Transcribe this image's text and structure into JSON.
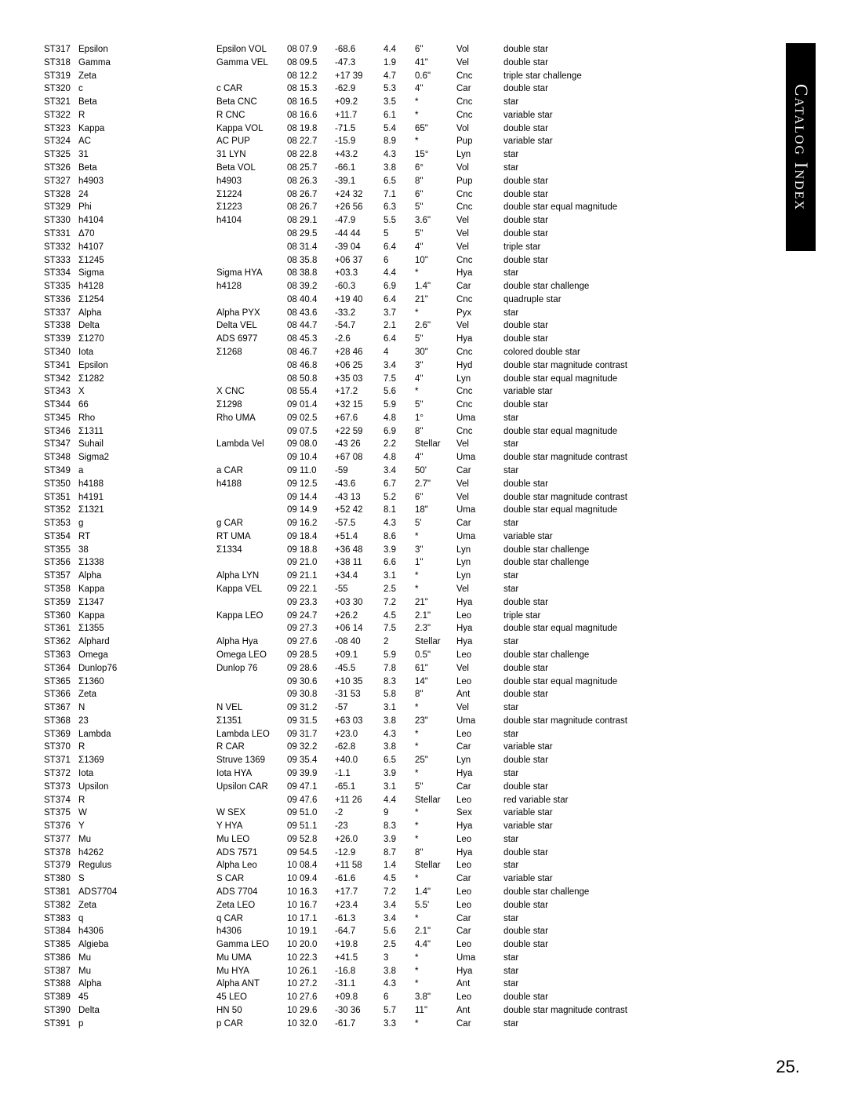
{
  "sidebar_label": "Catalog Index",
  "page_number": "25.",
  "columns": [
    "id",
    "name",
    "designation",
    "ra",
    "dec",
    "mag",
    "sep",
    "con",
    "type"
  ],
  "rows": [
    [
      "ST317",
      "Epsilon",
      "Epsilon VOL",
      "08 07.9",
      "-68.6",
      "4.4",
      "6\"",
      "Vol",
      "double star"
    ],
    [
      "ST318",
      "Gamma",
      "Gamma VEL",
      "08 09.5",
      "-47.3",
      "1.9",
      "41\"",
      "Vel",
      "double star"
    ],
    [
      "ST319",
      "Zeta",
      "",
      "08 12.2",
      "+17 39",
      "4.7",
      "0.6\"",
      "Cnc",
      "triple star challenge"
    ],
    [
      "ST320",
      "c",
      "c CAR",
      "08 15.3",
      "-62.9",
      "5.3",
      "4\"",
      "Car",
      "double star"
    ],
    [
      "ST321",
      "Beta",
      "Beta CNC",
      "08 16.5",
      "+09.2",
      "3.5",
      "*",
      "Cnc",
      "star"
    ],
    [
      "ST322",
      "R",
      "R CNC",
      "08 16.6",
      "+11.7",
      "6.1",
      "*",
      "Cnc",
      "variable star"
    ],
    [
      "ST323",
      "Kappa",
      "Kappa VOL",
      "08 19.8",
      "-71.5",
      "5.4",
      "65\"",
      "Vol",
      "double star"
    ],
    [
      "ST324",
      "AC",
      "AC PUP",
      "08 22.7",
      "-15.9",
      "8.9",
      "*",
      "Pup",
      "variable star"
    ],
    [
      "ST325",
      "31",
      "31 LYN",
      "08 22.8",
      "+43.2",
      "4.3",
      "15°",
      "Lyn",
      "star"
    ],
    [
      "ST326",
      "Beta",
      "Beta VOL",
      "08 25.7",
      "-66.1",
      "3.8",
      "6°",
      "Vol",
      "star"
    ],
    [
      "ST327",
      "h4903",
      "h4903",
      "08 26.3",
      "-39.1",
      "6.5",
      "8\"",
      "Pup",
      "double star"
    ],
    [
      "ST328",
      "24",
      "Σ1224",
      "08 26.7",
      "+24 32",
      "7.1",
      "6\"",
      "Cnc",
      "double star"
    ],
    [
      "ST329",
      "Phi",
      "Σ1223",
      "08 26.7",
      "+26 56",
      "6.3",
      "5\"",
      "Cnc",
      "double star equal magnitude"
    ],
    [
      "ST330",
      "h4104",
      "h4104",
      "08 29.1",
      "-47.9",
      "5.5",
      "3.6\"",
      "Vel",
      "double star"
    ],
    [
      "ST331",
      "Δ70",
      "",
      "08 29.5",
      "-44 44",
      "5",
      "5\"",
      "Vel",
      "double star"
    ],
    [
      "ST332",
      "h4107",
      "",
      "08 31.4",
      "-39 04",
      "6.4",
      "4\"",
      "Vel",
      "triple star"
    ],
    [
      "ST333",
      "Σ1245",
      "",
      "08 35.8",
      "+06 37",
      "6",
      "10\"",
      "Cnc",
      "double star"
    ],
    [
      "ST334",
      "Sigma",
      "Sigma HYA",
      "08 38.8",
      "+03.3",
      "4.4",
      "*",
      "Hya",
      "star"
    ],
    [
      "ST335",
      "h4128",
      "h4128",
      "08 39.2",
      "-60.3",
      "6.9",
      "1.4\"",
      "Car",
      "double star challenge"
    ],
    [
      "ST336",
      "Σ1254",
      "",
      "08 40.4",
      "+19 40",
      "6.4",
      "21\"",
      "Cnc",
      "quadruple star"
    ],
    [
      "ST337",
      "Alpha",
      "Alpha PYX",
      "08 43.6",
      "-33.2",
      "3.7",
      "*",
      "Pyx",
      "star"
    ],
    [
      "ST338",
      "Delta",
      "Delta VEL",
      "08 44.7",
      "-54.7",
      "2.1",
      "2.6\"",
      "Vel",
      "double star"
    ],
    [
      "ST339",
      "Σ1270",
      "ADS 6977",
      "08 45.3",
      "-2.6",
      "6.4",
      "5\"",
      "Hya",
      "double star"
    ],
    [
      "ST340",
      "Iota",
      "Σ1268",
      "08 46.7",
      "+28 46",
      "4",
      "30\"",
      "Cnc",
      "colored double star"
    ],
    [
      "ST341",
      "Epsilon",
      "",
      "08 46.8",
      "+06 25",
      "3.4",
      "3\"",
      "Hyd",
      "double star magnitude contrast"
    ],
    [
      "ST342",
      "Σ1282",
      "",
      "08 50.8",
      "+35 03",
      "7.5",
      "4\"",
      "Lyn",
      "double star equal magnitude"
    ],
    [
      "ST343",
      "X",
      "X CNC",
      "08 55.4",
      "+17.2",
      "5.6",
      "*",
      "Cnc",
      "variable star"
    ],
    [
      "ST344",
      "66",
      "Σ1298",
      "09 01.4",
      "+32 15",
      "5.9",
      "5\"",
      "Cnc",
      "double star"
    ],
    [
      "ST345",
      "Rho",
      "Rho UMA",
      "09 02.5",
      "+67.6",
      "4.8",
      "1°",
      "Uma",
      "star"
    ],
    [
      "ST346",
      "Σ1311",
      "",
      "09 07.5",
      "+22 59",
      "6.9",
      "8\"",
      "Cnc",
      "double star equal magnitude"
    ],
    [
      "ST347",
      "Suhail",
      "Lambda Vel",
      "09 08.0",
      "-43 26",
      "2.2",
      "Stellar",
      "Vel",
      "star"
    ],
    [
      "ST348",
      "Sigma2",
      "",
      "09 10.4",
      "+67 08",
      "4.8",
      "4\"",
      "Uma",
      "double star magnitude contrast"
    ],
    [
      "ST349",
      "a",
      "a CAR",
      "09 11.0",
      "-59",
      "3.4",
      "50'",
      "Car",
      "star"
    ],
    [
      "ST350",
      "h4188",
      "h4188",
      "09 12.5",
      "-43.6",
      "6.7",
      "2.7\"",
      "Vel",
      "double star"
    ],
    [
      "ST351",
      "h4191",
      "",
      "09 14.4",
      "-43 13",
      "5.2",
      "6\"",
      "Vel",
      "double star magnitude contrast"
    ],
    [
      "ST352",
      "Σ1321",
      "",
      "09 14.9",
      "+52 42",
      "8.1",
      "18\"",
      "Uma",
      "double star equal magnitude"
    ],
    [
      "ST353",
      "g",
      "g CAR",
      "09 16.2",
      "-57.5",
      "4.3",
      "5'",
      "Car",
      "star"
    ],
    [
      "ST354",
      "RT",
      "RT UMA",
      "09 18.4",
      "+51.4",
      "8.6",
      "*",
      "Uma",
      "variable star"
    ],
    [
      "ST355",
      "38",
      "Σ1334",
      "09 18.8",
      "+36 48",
      "3.9",
      "3\"",
      "Lyn",
      "double star challenge"
    ],
    [
      "ST356",
      "Σ1338",
      "",
      "09 21.0",
      "+38 11",
      "6.6",
      "1\"",
      "Lyn",
      "double star challenge"
    ],
    [
      "ST357",
      "Alpha",
      "Alpha LYN",
      "09 21.1",
      "+34.4",
      "3.1",
      "*",
      "Lyn",
      "star"
    ],
    [
      "ST358",
      "Kappa",
      "Kappa VEL",
      "09 22.1",
      "-55",
      "2.5",
      "*",
      "Vel",
      "star"
    ],
    [
      "ST359",
      "Σ1347",
      "",
      "09 23.3",
      "+03 30",
      "7.2",
      "21\"",
      "Hya",
      "double star"
    ],
    [
      "ST360",
      "Kappa",
      "Kappa LEO",
      "09 24.7",
      "+26.2",
      "4.5",
      "2.1\"",
      "Leo",
      "triple star"
    ],
    [
      "ST361",
      "Σ1355",
      "",
      "09 27.3",
      "+06 14",
      "7.5",
      "2.3\"",
      "Hya",
      "double star equal magnitude"
    ],
    [
      "ST362",
      "Alphard",
      "Alpha Hya",
      "09 27.6",
      "-08 40",
      "2",
      "Stellar",
      "Hya",
      "star"
    ],
    [
      "ST363",
      "Omega",
      "Omega LEO",
      "09 28.5",
      "+09.1",
      "5.9",
      "0.5\"",
      "Leo",
      "double star challenge"
    ],
    [
      "ST364",
      "Dunlop76",
      "Dunlop 76",
      "09 28.6",
      "-45.5",
      "7.8",
      "61\"",
      "Vel",
      "double star"
    ],
    [
      "ST365",
      "Σ1360",
      "",
      "09 30.6",
      "+10 35",
      "8.3",
      "14\"",
      "Leo",
      "double star equal magnitude"
    ],
    [
      "ST366",
      "Zeta",
      "",
      "09 30.8",
      "-31 53",
      "5.8",
      "8\"",
      "Ant",
      "double star"
    ],
    [
      "ST367",
      "N",
      "N VEL",
      "09 31.2",
      "-57",
      "3.1",
      "*",
      "Vel",
      "star"
    ],
    [
      "ST368",
      "23",
      "Σ1351",
      "09 31.5",
      "+63 03",
      "3.8",
      "23\"",
      "Uma",
      "double star magnitude contrast"
    ],
    [
      "ST369",
      "Lambda",
      "Lambda LEO",
      "09 31.7",
      "+23.0",
      "4.3",
      "*",
      "Leo",
      "star"
    ],
    [
      "ST370",
      "R",
      "R CAR",
      "09 32.2",
      "-62.8",
      "3.8",
      "*",
      "Car",
      "variable star"
    ],
    [
      "ST371",
      "Σ1369",
      "Struve 1369",
      "09 35.4",
      "+40.0",
      "6.5",
      "25\"",
      "Lyn",
      "double star"
    ],
    [
      "ST372",
      "Iota",
      "Iota HYA",
      "09 39.9",
      "-1.1",
      "3.9",
      "*",
      "Hya",
      "star"
    ],
    [
      "ST373",
      "Upsilon",
      "Upsilon CAR",
      "09 47.1",
      "-65.1",
      "3.1",
      "5\"",
      "Car",
      "double star"
    ],
    [
      "ST374",
      "R",
      "",
      "09 47.6",
      "+11 26",
      "4.4",
      "Stellar",
      "Leo",
      "red variable star"
    ],
    [
      "ST375",
      "W",
      "W SEX",
      "09 51.0",
      "-2",
      "9",
      "*",
      "Sex",
      "variable star"
    ],
    [
      "ST376",
      "Y",
      "Y HYA",
      "09 51.1",
      "-23",
      "8.3",
      "*",
      "Hya",
      "variable star"
    ],
    [
      "ST377",
      "Mu",
      "Mu LEO",
      "09 52.8",
      "+26.0",
      "3.9",
      "*",
      "Leo",
      "star"
    ],
    [
      "ST378",
      "h4262",
      "ADS 7571",
      "09 54.5",
      "-12.9",
      "8.7",
      "8\"",
      "Hya",
      "double star"
    ],
    [
      "ST379",
      "Regulus",
      "Alpha Leo",
      "10 08.4",
      "+11 58",
      "1.4",
      "Stellar",
      "Leo",
      "star"
    ],
    [
      "ST380",
      "S",
      "S CAR",
      "10 09.4",
      "-61.6",
      "4.5",
      "*",
      "Car",
      "variable star"
    ],
    [
      "ST381",
      "ADS7704",
      "ADS 7704",
      "10 16.3",
      "+17.7",
      "7.2",
      "1.4\"",
      "Leo",
      "double star challenge"
    ],
    [
      "ST382",
      "Zeta",
      "Zeta LEO",
      "10 16.7",
      "+23.4",
      "3.4",
      "5.5'",
      "Leo",
      "double star"
    ],
    [
      "ST383",
      "q",
      "q CAR",
      "10 17.1",
      "-61.3",
      "3.4",
      "*",
      "Car",
      "star"
    ],
    [
      "ST384",
      "h4306",
      "h4306",
      "10 19.1",
      "-64.7",
      "5.6",
      "2.1\"",
      "Car",
      "double star"
    ],
    [
      "ST385",
      "Algieba",
      "Gamma LEO",
      "10 20.0",
      "+19.8",
      "2.5",
      "4.4\"",
      "Leo",
      "double star"
    ],
    [
      "ST386",
      "Mu",
      "Mu UMA",
      "10 22.3",
      "+41.5",
      "3",
      "*",
      "Uma",
      "star"
    ],
    [
      "ST387",
      "Mu",
      "Mu HYA",
      "10 26.1",
      "-16.8",
      "3.8",
      "*",
      "Hya",
      "star"
    ],
    [
      "ST388",
      "Alpha",
      "Alpha ANT",
      "10 27.2",
      "-31.1",
      "4.3",
      "*",
      "Ant",
      "star"
    ],
    [
      "ST389",
      "45",
      "45 LEO",
      "10 27.6",
      "+09.8",
      "6",
      "3.8\"",
      "Leo",
      "double star"
    ],
    [
      "ST390",
      "Delta",
      "HN 50",
      "10 29.6",
      "-30 36",
      "5.7",
      "11\"",
      "Ant",
      "double star magnitude contrast"
    ],
    [
      "ST391",
      "p",
      "p CAR",
      "10 32.0",
      "-61.7",
      "3.3",
      "*",
      "Car",
      "star"
    ]
  ]
}
